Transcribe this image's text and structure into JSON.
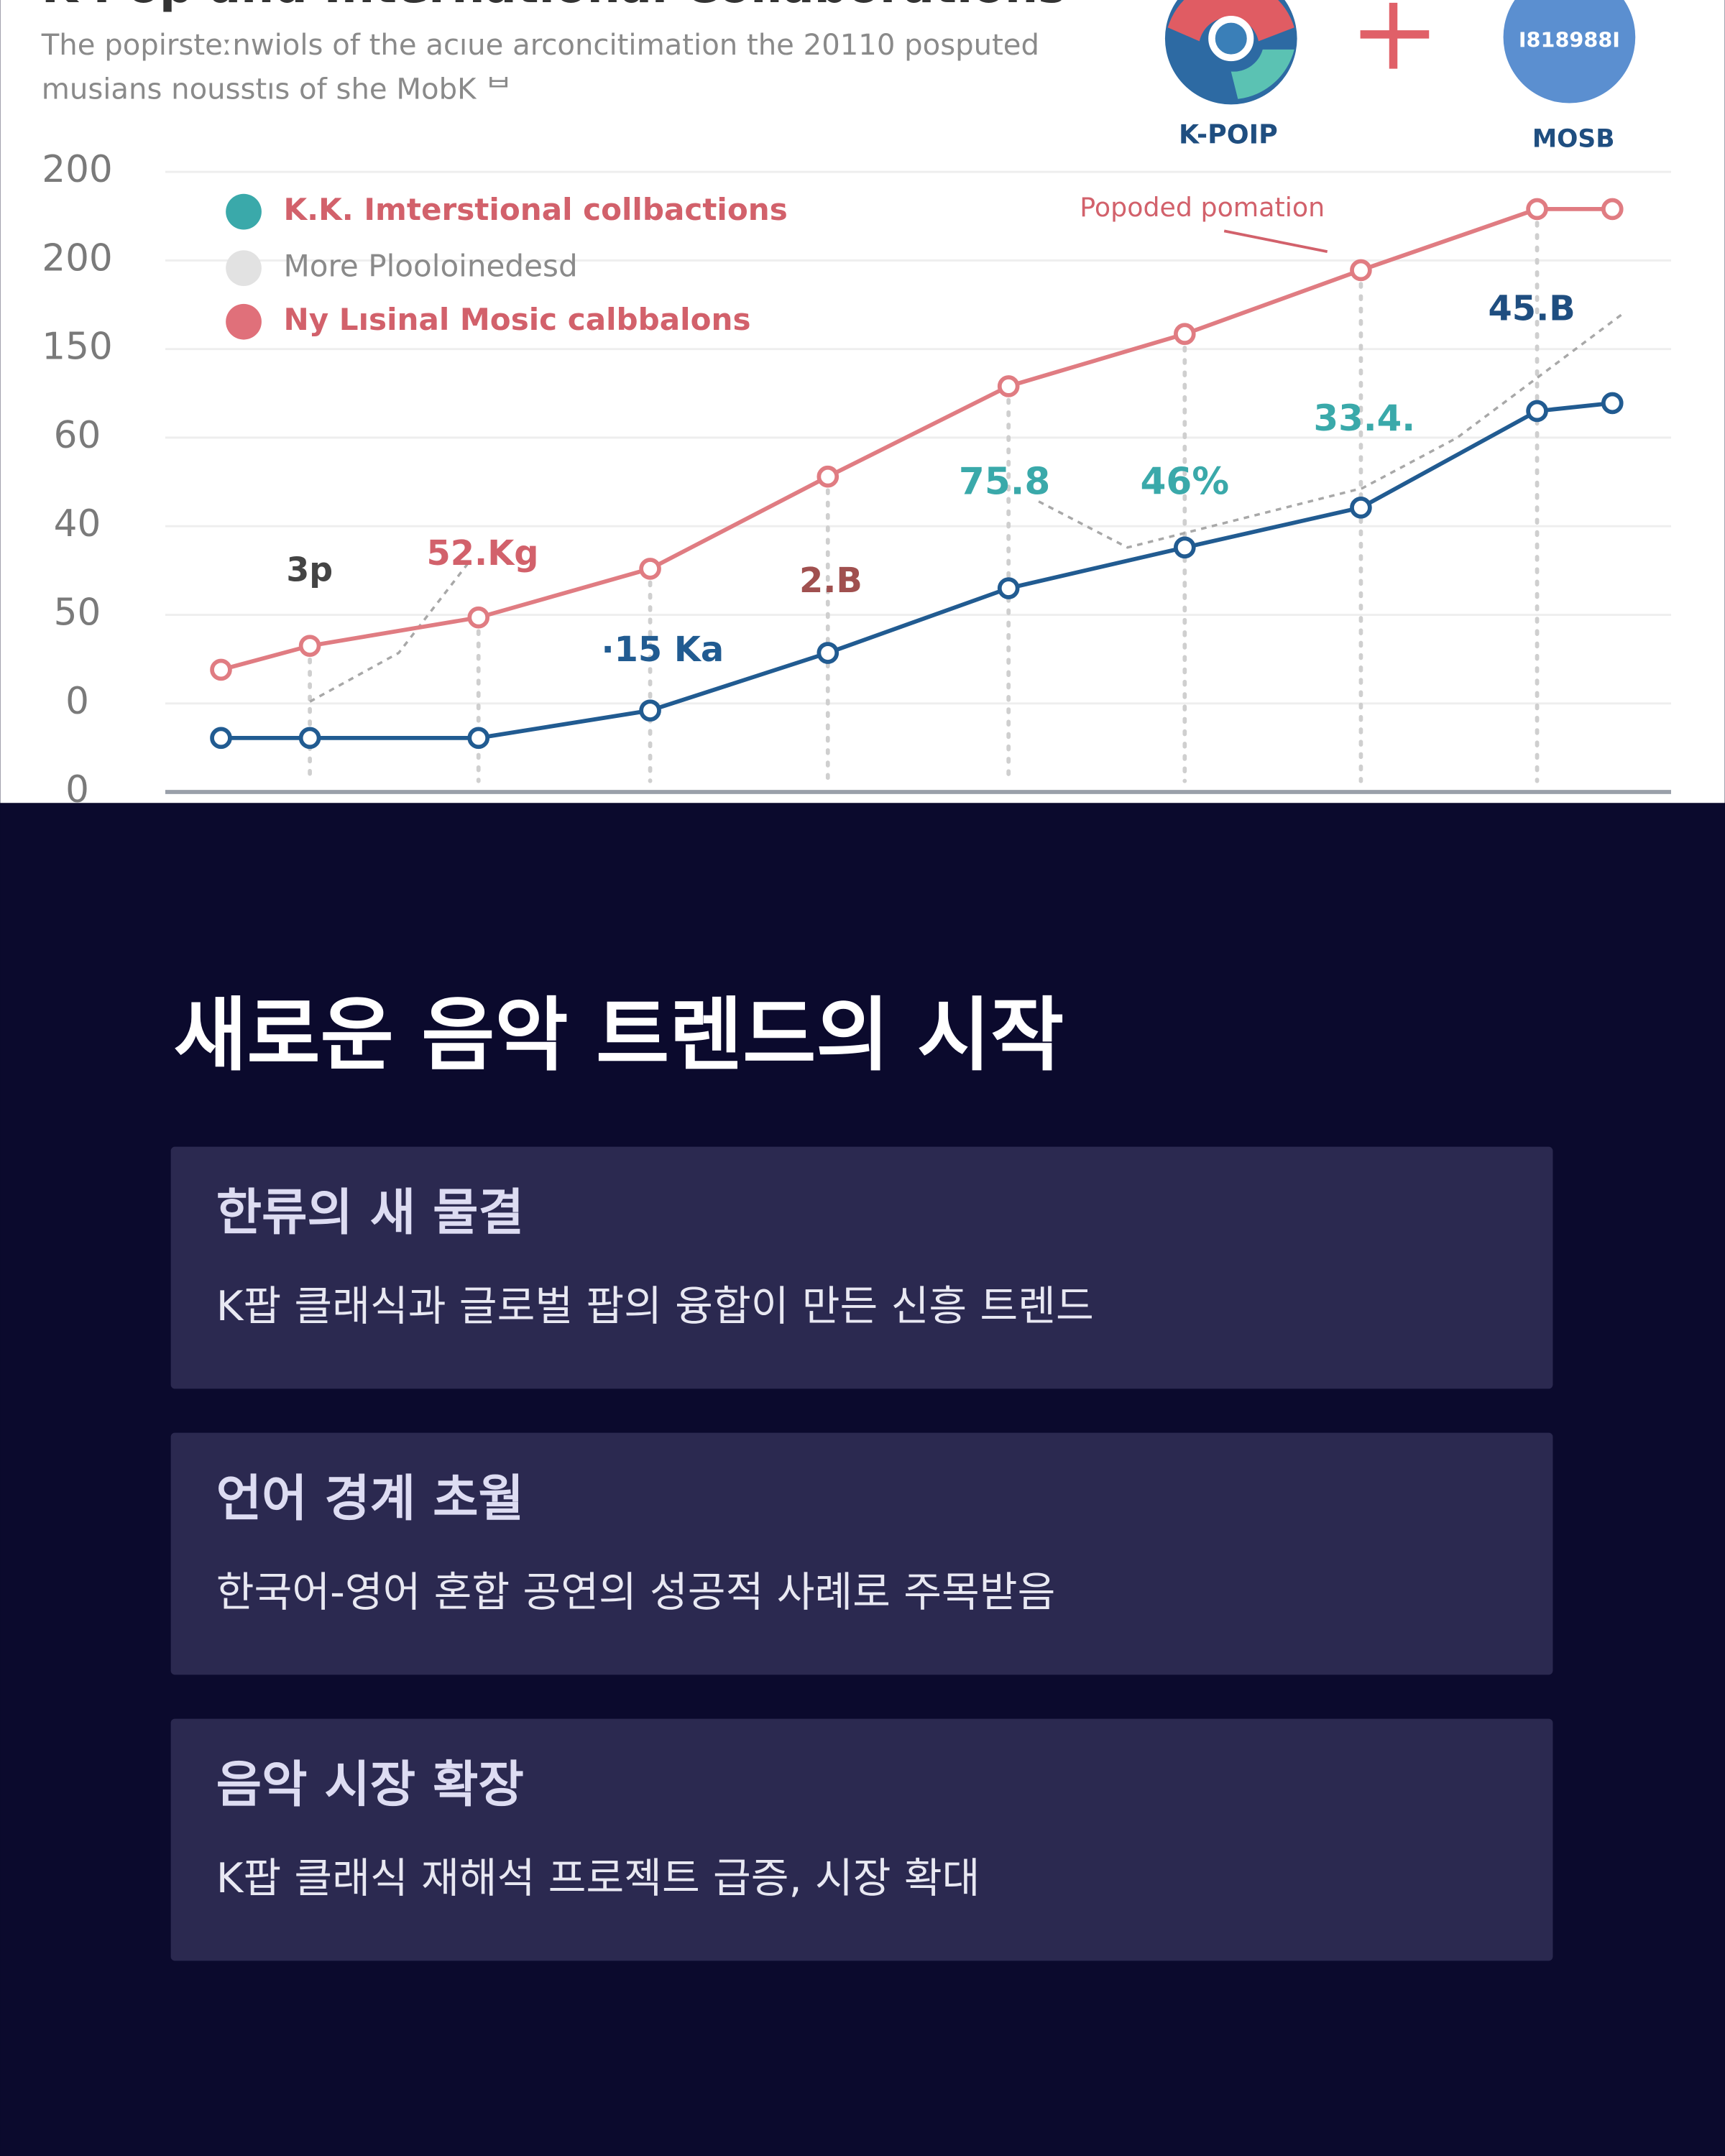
{
  "header": {
    "title": "K-Pop and International Collaborations",
    "subtitle_lines": [
      "The popirsteːnwiols of the acıue arconcitimation the 20110 posputed",
      "musians nousstıs of she MobK ᄇ"
    ],
    "logos": [
      {
        "label": "K-POIP"
      },
      {
        "label": "MOSB",
        "badge": "I818988I"
      }
    ]
  },
  "chart_data": {
    "type": "line",
    "y_labels": [
      "0",
      "0",
      "50",
      "40",
      "60",
      "150",
      "200",
      "200"
    ],
    "ylim": [
      0,
      7
    ],
    "xlim": [
      0,
      100
    ],
    "series": [
      {
        "name": "K.K. Imterstional collbactions",
        "color": "#215b91",
        "legend_color": "#3aa9aa",
        "legend_text_color": "#d2616b",
        "x": [
          3.7,
          9.6,
          20.8,
          32.2,
          44.0,
          56.0,
          67.7,
          79.4,
          91.1,
          96.1
        ],
        "values": [
          0.61,
          0.61,
          0.61,
          0.92,
          1.57,
          2.3,
          2.76,
          3.21,
          4.3,
          4.39
        ]
      },
      {
        "name": "More Plooloinedesd",
        "color": "#a8a8a8",
        "legend_color": "#e2e2e2",
        "legend_text_color": "#8a8a8a",
        "x": [
          9.6,
          15.5,
          20.1,
          40.0,
          58.0,
          63.9,
          79.5,
          85.8,
          96.8
        ],
        "values": [
          1.02,
          1.57,
          2.58,
          null,
          3.28,
          2.76,
          3.43,
          4.0,
          5.4
        ]
      },
      {
        "name": "Ny Lısinal Mosic calbbalons",
        "color": "#e07c82",
        "legend_color": "#e0707a",
        "legend_text_color": "#d2616b",
        "x": [
          3.7,
          9.6,
          20.8,
          32.2,
          44.0,
          56.0,
          67.7,
          79.4,
          91.1,
          96.1
        ],
        "values": [
          1.38,
          1.65,
          1.97,
          2.52,
          3.56,
          4.58,
          5.17,
          5.89,
          6.58,
          6.58
        ]
      }
    ],
    "annotations": [
      {
        "text": "3p",
        "color": "#444444"
      },
      {
        "text": "52.Kg",
        "color": "#d2616b"
      },
      {
        "text": "·15 Ka",
        "color": "#215b91"
      },
      {
        "text": "2.B",
        "color": "#a0504f"
      },
      {
        "text": "75.8",
        "color": "#3aa9aa"
      },
      {
        "text": "46%",
        "color": "#3aa9aa"
      },
      {
        "text": "33.4.",
        "color": "#3aa9aa"
      },
      {
        "text": "45.B",
        "color": "#1f4e80"
      },
      {
        "text": "Popoded pomation",
        "color": "#d2616b"
      }
    ]
  },
  "section": {
    "heading": "새로운 음악 트렌드의 시작",
    "cards": [
      {
        "title": "한류의 새 물결",
        "text": "K팝 클래식과 글로벌 팝의 융합이 만든 신흥 트렌드"
      },
      {
        "title": "언어 경계 초월",
        "text": "한국어-영어 혼합 공연의 성공적 사례로 주목받음"
      },
      {
        "title": "음악 시장 확장",
        "text": "K팝 클래식 재해석 프로젝트 급증, 시장 확대"
      }
    ]
  }
}
